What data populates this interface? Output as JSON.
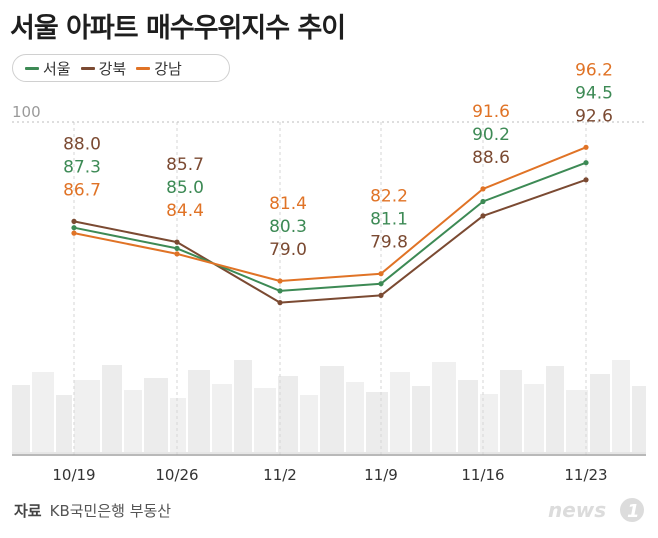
{
  "title": "서울 아파트 매수우위지수 추이",
  "source": {
    "label": "자료",
    "text": "KB국민은행 부동산"
  },
  "logo_text": "news",
  "chart_data": {
    "type": "line",
    "title": "서울 아파트 매수우위지수 추이",
    "categories": [
      "10/19",
      "10/26",
      "11/2",
      "11/9",
      "11/16",
      "11/23"
    ],
    "reference_line": {
      "value": 100,
      "label": "100"
    },
    "ylim": [
      50,
      110
    ],
    "grid": false,
    "legend_position": "top-left",
    "series": [
      {
        "name": "서울",
        "color": "#3d8a55",
        "values": [
          87.3,
          85.0,
          80.3,
          81.1,
          90.2,
          94.5
        ],
        "labels": [
          "87.3",
          "85.0",
          "80.3",
          "81.1",
          "90.2",
          "94.5"
        ]
      },
      {
        "name": "강북",
        "color": "#7b4a32",
        "values": [
          88.0,
          85.7,
          79.0,
          79.8,
          88.6,
          92.6
        ],
        "labels": [
          "88.0",
          "85.7",
          "79.0",
          "79.8",
          "88.6",
          "92.6"
        ]
      },
      {
        "name": "강남",
        "color": "#e07326",
        "values": [
          86.7,
          84.4,
          81.4,
          82.2,
          91.6,
          96.2
        ],
        "labels": [
          "86.7",
          "84.4",
          "81.4",
          "82.2",
          "91.6",
          "96.2"
        ]
      }
    ]
  }
}
